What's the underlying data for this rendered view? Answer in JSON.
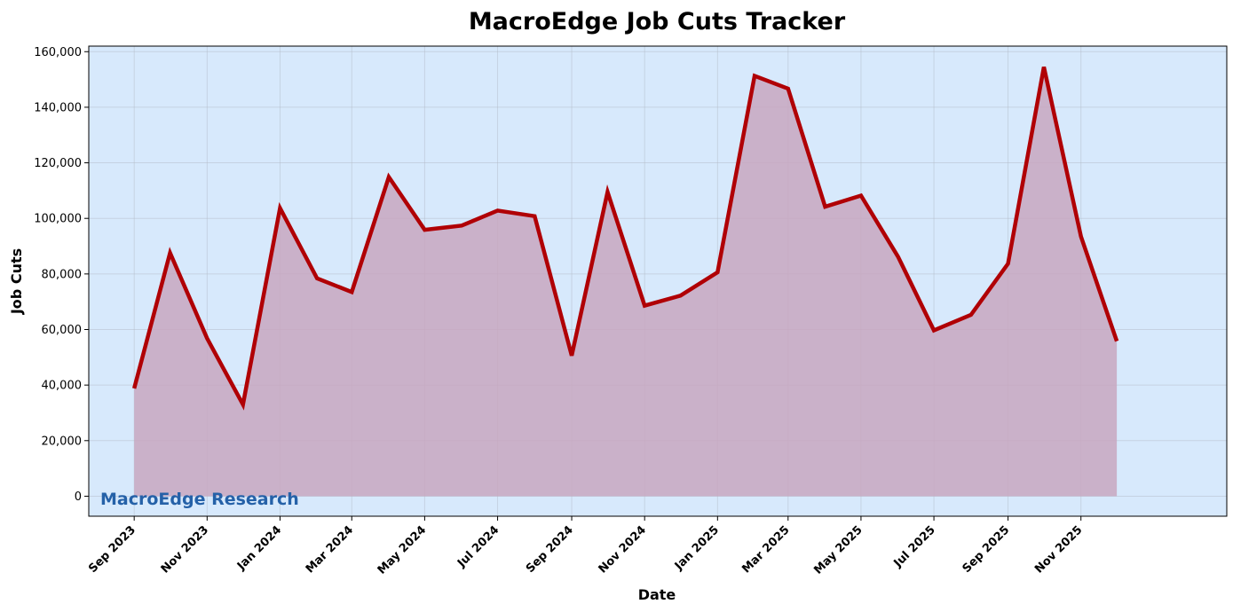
{
  "chart_data": {
    "type": "area",
    "title": "MacroEdge Job Cuts Tracker",
    "xlabel": "Date",
    "ylabel": "Job Cuts",
    "x": [
      "2023-09",
      "2023-10",
      "2023-11",
      "2023-12",
      "2024-01",
      "2024-02",
      "2024-03",
      "2024-04",
      "2024-05",
      "2024-06",
      "2024-07",
      "2024-08",
      "2024-09",
      "2024-10",
      "2024-11",
      "2024-12",
      "2025-01",
      "2025-02",
      "2025-03",
      "2025-04",
      "2025-05",
      "2025-06",
      "2025-07",
      "2025-08",
      "2025-09",
      "2025-10",
      "2025-11",
      "2025-12"
    ],
    "series": [
      {
        "values": [
          38800,
          87600,
          56800,
          33000,
          103700,
          78400,
          73500,
          114900,
          95900,
          97400,
          102800,
          100800,
          50600,
          109500,
          68600,
          72200,
          80600,
          151300,
          146700,
          104200,
          108200,
          86200,
          59700,
          65300,
          83700,
          154500,
          93500,
          55800
        ]
      }
    ],
    "xticks": [
      {
        "date": "2023-09",
        "label": "Sep 2023"
      },
      {
        "date": "2023-11",
        "label": "Nov 2023"
      },
      {
        "date": "2024-01",
        "label": "Jan 2024"
      },
      {
        "date": "2024-03",
        "label": "Mar 2024"
      },
      {
        "date": "2024-05",
        "label": "May 2024"
      },
      {
        "date": "2024-07",
        "label": "Jul 2024"
      },
      {
        "date": "2024-09",
        "label": "Sep 2024"
      },
      {
        "date": "2024-11",
        "label": "Nov 2024"
      },
      {
        "date": "2025-01",
        "label": "Jan 2025"
      },
      {
        "date": "2025-03",
        "label": "Mar 2025"
      },
      {
        "date": "2025-05",
        "label": "May 2025"
      },
      {
        "date": "2025-07",
        "label": "Jul 2025"
      },
      {
        "date": "2025-09",
        "label": "Sep 2025"
      },
      {
        "date": "2025-11",
        "label": "Nov 2025"
      }
    ],
    "yticks": [
      0,
      20000,
      40000,
      60000,
      80000,
      100000,
      120000,
      140000,
      160000
    ],
    "ytick_labels": [
      "0",
      "20,000",
      "40,000",
      "60,000",
      "80,000",
      "100,000",
      "120,000",
      "140,000",
      "160,000"
    ],
    "xlim": [
      "2023-07-25",
      "2026-03-03"
    ],
    "ylim": [
      -7200,
      162000
    ],
    "grid": true,
    "watermark": "MacroEdge Research",
    "colors": {
      "background": "#d7e9fc",
      "line": "#b00005",
      "fill": "#c8a7bf",
      "watermark": "#2561a8"
    }
  }
}
